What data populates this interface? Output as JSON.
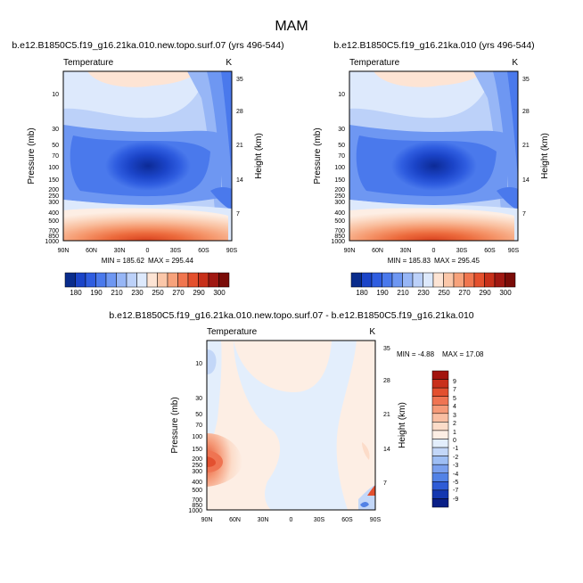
{
  "figure_title": "MAM",
  "chart_data": [
    {
      "type": "heatmap",
      "title": "b.e12.B1850C5.f19_g16.21ka.010.new.topo.surf.07 (yrs 496-544)",
      "variable": "Temperature",
      "units": "K",
      "xlabel": "",
      "ylabel": "Pressure (mb)",
      "y2label": "Height (km)",
      "x_ticks": [
        "90N",
        "60N",
        "30N",
        "0",
        "30S",
        "60S",
        "90S"
      ],
      "y_ticks": [
        "10",
        "30",
        "50",
        "70",
        "100",
        "150",
        "200",
        "250",
        "300",
        "400",
        "500",
        "700",
        "850",
        "1000"
      ],
      "y2_ticks": [
        "35",
        "28",
        "21",
        "14",
        "7"
      ],
      "min": 185.62,
      "max": 295.44,
      "min_label": "MIN = 185.62",
      "max_label": "MAX = 295.44"
    },
    {
      "type": "heatmap",
      "title": "b.e12.B1850C5.f19_g16.21ka.010 (yrs 496-544)",
      "variable": "Temperature",
      "units": "K",
      "xlabel": "",
      "ylabel": "Pressure (mb)",
      "y2label": "Height (km)",
      "x_ticks": [
        "90N",
        "60N",
        "30N",
        "0",
        "30S",
        "60S",
        "90S"
      ],
      "y_ticks": [
        "10",
        "30",
        "50",
        "70",
        "100",
        "150",
        "200",
        "250",
        "300",
        "400",
        "500",
        "700",
        "850",
        "1000"
      ],
      "y2_ticks": [
        "35",
        "28",
        "21",
        "14",
        "7"
      ],
      "min": 185.83,
      "max": 295.45,
      "min_label": "MIN = 185.83",
      "max_label": "MAX = 295.45"
    },
    {
      "type": "heatmap",
      "title": "b.e12.B1850C5.f19_g16.21ka.010.new.topo.surf.07 - b.e12.B1850C5.f19_g16.21ka.010",
      "variable": "Temperature",
      "units": "K",
      "xlabel": "",
      "ylabel": "Pressure (mb)",
      "y2label": "Height (km)",
      "x_ticks": [
        "90N",
        "60N",
        "30N",
        "0",
        "30S",
        "60S",
        "90S"
      ],
      "y_ticks": [
        "10",
        "30",
        "50",
        "70",
        "100",
        "150",
        "200",
        "250",
        "300",
        "400",
        "500",
        "700",
        "850",
        "1000"
      ],
      "y2_ticks": [
        "35",
        "28",
        "21",
        "14",
        "7"
      ],
      "min": -4.88,
      "max": 17.08,
      "min_label": "MIN = -4.88",
      "max_label": "MAX = 17.08"
    }
  ],
  "shared_colorbar": {
    "labels": [
      "180",
      "190",
      "210",
      "230",
      "250",
      "270",
      "290",
      "300"
    ],
    "colors": [
      "#0a2c8c",
      "#1b44c8",
      "#2f5de0",
      "#4a79ec",
      "#6e97f2",
      "#97b6f6",
      "#bcd1f9",
      "#dde9fc",
      "#fde4d4",
      "#fbc7a9",
      "#f7a27b",
      "#f0764f",
      "#e4502d",
      "#c7301a",
      "#a01812",
      "#7a0c08"
    ]
  },
  "diff_colorbar": {
    "labels": [
      "9",
      "7",
      "5",
      "4",
      "3",
      "2",
      "1",
      "0",
      "-1",
      "-2",
      "-3",
      "-4",
      "-5",
      "-7",
      "-9"
    ],
    "colors": [
      "#a3140e",
      "#c9301b",
      "#e3502f",
      "#ef7452",
      "#f59a78",
      "#f9bea2",
      "#fcdcc9",
      "#fdeee4",
      "#e3eefc",
      "#c3d7f8",
      "#9ebef4",
      "#7aa0ee",
      "#5282e6",
      "#2f5cd6",
      "#1437b0",
      "#0a1f86"
    ]
  }
}
